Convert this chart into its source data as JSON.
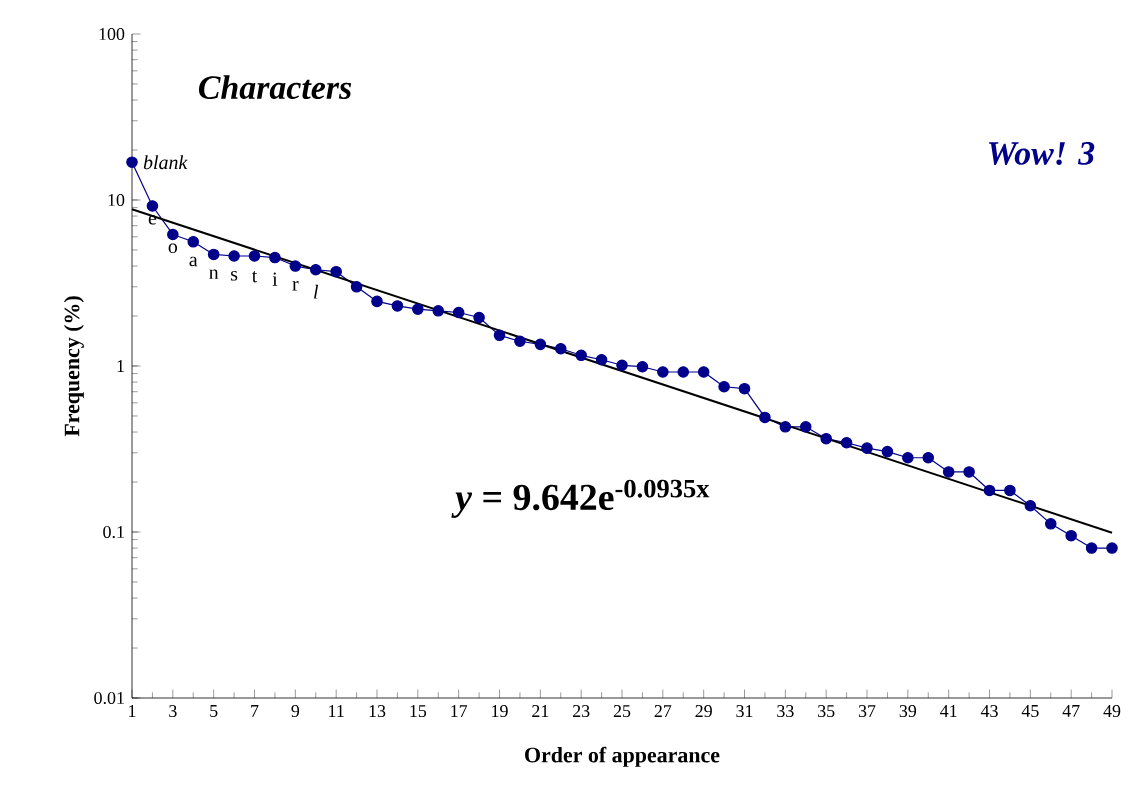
{
  "chart_data": {
    "type": "line",
    "title": "Characters",
    "xlabel": "Order of appearance",
    "ylabel": "Frequency (%)",
    "x": [
      1,
      2,
      3,
      4,
      5,
      6,
      7,
      8,
      9,
      10,
      11,
      12,
      13,
      14,
      15,
      16,
      17,
      18,
      19,
      20,
      21,
      22,
      23,
      24,
      25,
      26,
      27,
      28,
      29,
      30,
      31,
      32,
      33,
      34,
      35,
      36,
      37,
      38,
      39,
      40,
      41,
      42,
      43,
      44,
      45,
      46,
      47,
      48,
      49
    ],
    "series": [
      {
        "color": "#00008b",
        "marker": "circle",
        "values": [
          16.9,
          9.2,
          6.2,
          5.6,
          4.7,
          4.6,
          4.6,
          4.5,
          4.0,
          3.8,
          3.7,
          3.0,
          2.45,
          2.3,
          2.2,
          2.15,
          2.1,
          1.96,
          1.53,
          1.41,
          1.35,
          1.27,
          1.16,
          1.09,
          1.01,
          0.99,
          0.92,
          0.92,
          0.92,
          0.75,
          0.73,
          0.49,
          0.43,
          0.43,
          0.365,
          0.345,
          0.32,
          0.305,
          0.28,
          0.28,
          0.23,
          0.23,
          0.178,
          0.178,
          0.144,
          0.112,
          0.095,
          0.08,
          0.08
        ]
      },
      {
        "color": "#000000",
        "marker": "none",
        "x": [
          1,
          49
        ],
        "values": [
          8.8,
          0.099
        ]
      }
    ],
    "xlim": [
      1,
      49
    ],
    "ylim": [
      0.01,
      100
    ],
    "log": "y",
    "xticks": [
      1,
      3,
      5,
      7,
      9,
      11,
      13,
      15,
      17,
      19,
      21,
      23,
      25,
      27,
      29,
      31,
      33,
      35,
      37,
      39,
      41,
      43,
      45,
      47,
      49
    ],
    "yticks": [
      {
        "value": 0.01,
        "label": "0.01"
      },
      {
        "value": 0.1,
        "label": "0.1"
      },
      1,
      10,
      100
    ],
    "grid": false,
    "annotations": [
      "Wow! 3",
      "*y*  = 9.642e$^{-0.0935x}$",
      {
        "text": "*blank*",
        "x": 1,
        "y": 16.9
      },
      {
        "text": "e",
        "x": 2,
        "y": 9.2
      },
      {
        "text": "o",
        "x": 3,
        "y": 6.2
      },
      {
        "text": "a",
        "x": 4,
        "y": 5.6
      },
      {
        "text": "n",
        "x": 5,
        "y": 4.7
      },
      {
        "text": "s",
        "x": 6,
        "y": 4.6
      },
      {
        "text": "t",
        "x": 7,
        "y": 4.6
      },
      {
        "text": "i",
        "x": 8,
        "y": 4.5
      },
      {
        "text": "r",
        "x": 9,
        "y": 4.0
      },
      {
        "text": "*l*",
        "x": 10,
        "y": 3.8
      }
    ]
  }
}
